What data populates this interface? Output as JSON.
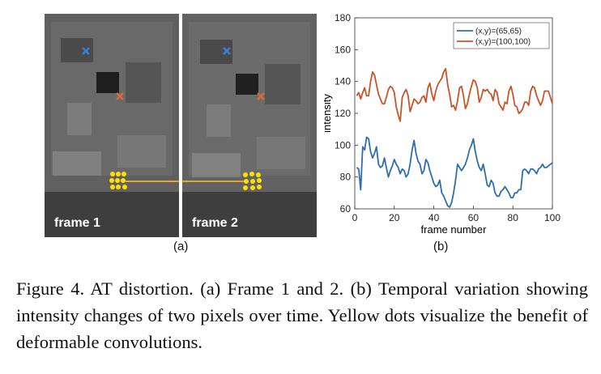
{
  "panel_a": {
    "frame1_label": "frame 1",
    "frame2_label": "frame 2",
    "sub_label": "(a)",
    "marker_blue": "#3a7fd6",
    "marker_orange": "#d96a3b",
    "dot_color": "#ffe000",
    "line_color": "#e3a430"
  },
  "panel_b": {
    "sub_label": "(b)"
  },
  "chart_data": {
    "type": "line",
    "xlabel": "frame number",
    "ylabel": "intensity",
    "xlim": [
      0,
      100
    ],
    "ylim": [
      60,
      180
    ],
    "xticks": [
      0,
      20,
      40,
      60,
      80,
      100
    ],
    "yticks": [
      60,
      80,
      100,
      120,
      140,
      160,
      180
    ],
    "legend_position": "top-right",
    "series": [
      {
        "name": "(x,y)=(65,65)",
        "color": "#2f6db3",
        "x": [
          1,
          2,
          3,
          4,
          5,
          6,
          7,
          8,
          9,
          10,
          11,
          12,
          13,
          14,
          15,
          16,
          17,
          18,
          19,
          20,
          21,
          22,
          23,
          24,
          25,
          26,
          27,
          28,
          29,
          30,
          31,
          32,
          33,
          34,
          35,
          36,
          37,
          38,
          39,
          40,
          41,
          42,
          43,
          44,
          45,
          46,
          47,
          48,
          49,
          50,
          51,
          52,
          53,
          54,
          55,
          56,
          57,
          58,
          59,
          60,
          61,
          62,
          63,
          64,
          65,
          66,
          67,
          68,
          69,
          70,
          71,
          72,
          73,
          74,
          75,
          76,
          77,
          78,
          79,
          80,
          81,
          82,
          83,
          84,
          85,
          86,
          87,
          88,
          89,
          90,
          91,
          92,
          93,
          94,
          95,
          96,
          97,
          98,
          99,
          100
        ],
        "y": [
          86,
          85,
          72,
          99,
          97,
          105,
          104,
          96,
          92,
          95,
          99,
          88,
          86,
          87,
          92,
          86,
          80,
          84,
          87,
          91,
          88,
          86,
          82,
          85,
          84,
          80,
          82,
          88,
          97,
          103,
          95,
          90,
          88,
          82,
          84,
          91,
          89,
          84,
          80,
          76,
          74,
          75,
          78,
          70,
          68,
          65,
          62,
          61,
          64,
          70,
          78,
          88,
          86,
          84,
          86,
          88,
          92,
          97,
          100,
          104,
          96,
          90,
          86,
          84,
          88,
          82,
          75,
          74,
          78,
          76,
          70,
          68,
          68,
          71,
          72,
          74,
          72,
          70,
          67,
          67,
          70,
          70,
          72,
          72,
          84,
          85,
          84,
          82,
          85,
          85,
          84,
          82,
          85,
          86,
          88,
          86,
          86,
          87,
          88,
          89
        ]
      },
      {
        "name": "(x,y)=(100,100)",
        "color": "#c8542b",
        "x": [
          1,
          2,
          3,
          4,
          5,
          6,
          7,
          8,
          9,
          10,
          11,
          12,
          13,
          14,
          15,
          16,
          17,
          18,
          19,
          20,
          21,
          22,
          23,
          24,
          25,
          26,
          27,
          28,
          29,
          30,
          31,
          32,
          33,
          34,
          35,
          36,
          37,
          38,
          39,
          40,
          41,
          42,
          43,
          44,
          45,
          46,
          47,
          48,
          49,
          50,
          51,
          52,
          53,
          54,
          55,
          56,
          57,
          58,
          59,
          60,
          61,
          62,
          63,
          64,
          65,
          66,
          67,
          68,
          69,
          70,
          71,
          72,
          73,
          74,
          75,
          76,
          77,
          78,
          79,
          80,
          81,
          82,
          83,
          84,
          85,
          86,
          87,
          88,
          89,
          90,
          91,
          92,
          93,
          94,
          95,
          96,
          97,
          98,
          99,
          100
        ],
        "y": [
          131,
          133,
          129,
          133,
          136,
          131,
          131,
          140,
          146,
          144,
          138,
          132,
          129,
          126,
          126,
          130,
          135,
          137,
          136,
          133,
          124,
          119,
          115,
          130,
          133,
          135,
          131,
          121,
          125,
          129,
          128,
          126,
          127,
          130,
          131,
          127,
          136,
          139,
          132,
          128,
          134,
          138,
          140,
          142,
          146,
          148,
          138,
          132,
          124,
          125,
          122,
          128,
          136,
          137,
          131,
          123,
          126,
          132,
          137,
          141,
          140,
          136,
          127,
          130,
          135,
          134,
          135,
          133,
          132,
          128,
          135,
          133,
          126,
          124,
          122,
          127,
          126,
          134,
          137,
          132,
          125,
          124,
          120,
          121,
          123,
          127,
          127,
          125,
          134,
          137,
          136,
          131,
          128,
          125,
          128,
          134,
          134,
          134,
          130,
          126
        ]
      }
    ]
  },
  "caption": {
    "text": "Figure 4. AT distortion. (a) Frame 1 and 2. (b) Temporal variation showing intensity changes of two pixels over time.  Yellow dots visualize the benefit of deformable convolutions."
  }
}
